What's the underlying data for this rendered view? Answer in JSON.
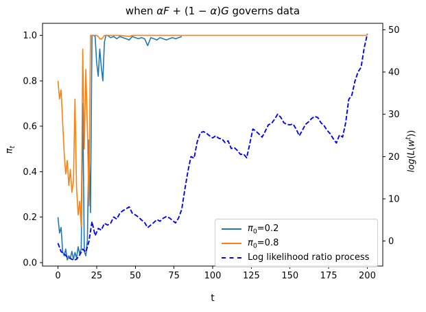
{
  "figure": {
    "background": "#ffffff",
    "title_segments": [
      {
        "t": "when ",
        "i": false
      },
      {
        "t": "αF",
        "i": true
      },
      {
        "t": " + (1 − ",
        "i": false
      },
      {
        "t": "α",
        "i": true
      },
      {
        "t": ")",
        "i": false
      },
      {
        "t": "G",
        "i": true
      },
      {
        "t": " governs data",
        "i": false
      }
    ]
  },
  "axes": {
    "x": {
      "label": "t",
      "min": -10,
      "max": 210,
      "ticks": [
        0,
        25,
        50,
        75,
        100,
        125,
        150,
        175,
        200
      ]
    },
    "y_left": {
      "label_segments": [
        {
          "t": "π",
          "i": true
        },
        {
          "t": "t",
          "i": true,
          "sub": true
        }
      ],
      "min": -0.015,
      "max": 1.053,
      "ticks": [
        "0.0",
        "0.2",
        "0.4",
        "0.6",
        "0.8",
        "1.0"
      ]
    },
    "y_right": {
      "label_segments": [
        {
          "t": "log",
          "i": true
        },
        {
          "t": "(",
          "i": false
        },
        {
          "t": "L",
          "i": true
        },
        {
          "t": "(",
          "i": false
        },
        {
          "t": "w",
          "i": true
        },
        {
          "t": "t",
          "i": true,
          "sup": true
        },
        {
          "t": "))",
          "i": false
        }
      ],
      "min": -5.9,
      "max": 51.5,
      "ticks": [
        0,
        10,
        20,
        30,
        40,
        50
      ]
    }
  },
  "legend": {
    "items": [
      {
        "color": "#1f77b4",
        "style": "solid",
        "label_segments": [
          {
            "t": "π",
            "i": true
          },
          {
            "t": "0",
            "sub": true
          },
          {
            "t": "=0.2"
          }
        ]
      },
      {
        "color": "#ff7f0e",
        "style": "solid",
        "label_segments": [
          {
            "t": "π",
            "i": true
          },
          {
            "t": "0",
            "sub": true
          },
          {
            "t": "=0.8"
          }
        ]
      },
      {
        "color": "#0000ff",
        "style": "dashed",
        "label_segments": [
          {
            "t": "Log likelihood ratio process"
          }
        ]
      }
    ]
  },
  "chart_data": {
    "type": "line",
    "title": "when αF + (1 − α)G governs data",
    "xlabel": "t",
    "ylabel_left": "π_t",
    "ylabel_right": "log(L(w^t))",
    "xlim": [
      -10,
      210
    ],
    "ylim_left": [
      -0.015,
      1.053
    ],
    "ylim_right": [
      -5.9,
      51.5
    ],
    "grid": false,
    "legend_position": "lower right inside plot",
    "series": [
      {
        "name": "π0=0.2",
        "axis": "left",
        "color": "#1f77b4",
        "style": "solid",
        "t": [
          0,
          1,
          2,
          3,
          4,
          5,
          6,
          7,
          8,
          9,
          10,
          11,
          12,
          13,
          14,
          15,
          16,
          17,
          18,
          19,
          20,
          21,
          22,
          23,
          24,
          25,
          26,
          27,
          28,
          29,
          30,
          31,
          32,
          34,
          36,
          38,
          40,
          42,
          44,
          46,
          48,
          50,
          52,
          54,
          56,
          58,
          60,
          62,
          64,
          66,
          68,
          70,
          72,
          74,
          76,
          78,
          80
        ],
        "values": [
          0.2,
          0.13,
          0.155,
          0.05,
          0.03,
          0.06,
          0.012,
          0.03,
          0.02,
          0.05,
          0.015,
          0.045,
          0.02,
          0.07,
          0.04,
          0.06,
          0.7,
          0.05,
          0.03,
          0.1,
          0.54,
          0.22,
          1.0,
          1.0,
          0.995,
          0.88,
          0.82,
          0.94,
          0.86,
          0.8,
          0.97,
          1.0,
          1.0,
          0.99,
          0.995,
          0.985,
          0.995,
          0.99,
          0.985,
          0.98,
          0.995,
          0.99,
          0.985,
          0.99,
          0.985,
          0.955,
          0.99,
          0.985,
          0.98,
          0.99,
          0.985,
          0.98,
          0.985,
          0.99,
          0.985,
          0.99,
          0.995
        ]
      },
      {
        "name": "π0=0.8",
        "axis": "left",
        "color": "#ff7f0e",
        "style": "solid",
        "t": [
          0,
          1,
          2,
          3,
          4,
          5,
          6,
          7,
          8,
          9,
          10,
          11,
          12,
          13,
          14,
          15,
          16,
          17,
          18,
          19,
          20,
          21,
          22,
          23,
          24,
          25,
          26,
          27,
          28,
          29,
          30,
          31,
          36,
          40,
          44,
          46,
          48,
          52,
          56,
          60,
          70,
          80,
          100,
          120,
          140,
          160,
          180,
          200
        ],
        "values": [
          0.8,
          0.72,
          0.76,
          0.62,
          0.48,
          0.39,
          0.45,
          0.34,
          0.41,
          0.31,
          0.36,
          0.72,
          0.33,
          0.21,
          0.27,
          0.16,
          0.94,
          0.5,
          0.85,
          0.59,
          0.25,
          1.0,
          1.0,
          1.0,
          1.0,
          1.0,
          0.995,
          0.985,
          0.983,
          0.99,
          1.0,
          1.0,
          1.0,
          1.0,
          0.997,
          0.995,
          1.0,
          1.0,
          1.0,
          1.0,
          1.0,
          1.0,
          1.0,
          1.0,
          1.0,
          1.0,
          1.0,
          1.0
        ]
      },
      {
        "name": "Log likelihood ratio process",
        "axis": "right",
        "color": "#0000ff",
        "style": "dashed",
        "t0": 0,
        "dt": 2,
        "values": [
          -0.5,
          -2.5,
          -3.0,
          -3.8,
          -4.1,
          -4.5,
          -4.3,
          -3.3,
          -1.9,
          -2.6,
          -0.1,
          4.6,
          1.3,
          3.0,
          2.6,
          4.2,
          3.8,
          4.2,
          5.7,
          5.2,
          6.6,
          7.2,
          7.6,
          8.1,
          6.6,
          6.2,
          5.7,
          5.0,
          4.4,
          3.2,
          3.8,
          4.4,
          5.1,
          4.7,
          5.4,
          5.8,
          5.5,
          4.9,
          4.3,
          5.5,
          7.5,
          12.2,
          16.5,
          20.0,
          19.6,
          23.5,
          25.6,
          25.9,
          25.5,
          24.9,
          24.4,
          24.9,
          24.3,
          24.2,
          23.3,
          23.7,
          21.9,
          22.1,
          21.4,
          20.5,
          20.6,
          19.7,
          23.0,
          26.5,
          26.0,
          25.3,
          24.6,
          26.0,
          27.5,
          27.8,
          28.8,
          30.0,
          29.3,
          28.0,
          27.6,
          27.5,
          27.7,
          26.5,
          24.9,
          26.2,
          27.6,
          28.2,
          29.0,
          29.5,
          29.2,
          28.0,
          27.3,
          26.2,
          25.4,
          24.2,
          23.2,
          25.1,
          24.6,
          28.0,
          33.5,
          34.5,
          37.8,
          40.0,
          41.1,
          45.7,
          49.0
        ]
      }
    ]
  }
}
